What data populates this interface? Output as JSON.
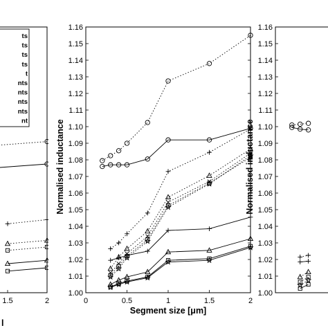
{
  "chart_data": [
    {
      "type": "line",
      "panel": "left",
      "x_ticks": [
        "1.5",
        "2"
      ],
      "legend_fragments": [
        "ts",
        "ts",
        "ts",
        "ts",
        "t",
        "nts",
        "nts",
        "nts",
        "nts",
        "nt"
      ],
      "series": [
        {
          "marker": "circle",
          "style": "dotted",
          "x": [
            1.0,
            2.0
          ],
          "y": [
            1.0875,
            1.091
          ]
        },
        {
          "marker": "circle",
          "style": "solid",
          "x": [
            1.0,
            2.0
          ],
          "y": [
            1.074,
            1.0775
          ]
        },
        {
          "marker": "plus",
          "style": "dotted",
          "x": [
            1.5,
            2.0
          ],
          "y": [
            1.0415,
            1.044
          ]
        },
        {
          "marker": "triangle",
          "style": "dotted",
          "x": [
            1.5,
            2.0
          ],
          "y": [
            1.0295,
            1.0315
          ]
        },
        {
          "marker": "square",
          "style": "dotted",
          "x": [
            1.5,
            2.0
          ],
          "y": [
            1.0255,
            1.0275
          ]
        },
        {
          "marker": "triangle",
          "style": "solid",
          "x": [
            1.5,
            2.0
          ],
          "y": [
            1.0175,
            1.0195
          ]
        },
        {
          "marker": "square",
          "style": "solid",
          "x": [
            1.5,
            2.0
          ],
          "y": [
            1.013,
            1.015
          ]
        }
      ]
    },
    {
      "type": "line",
      "panel": "middle",
      "xlabel": "Segment size [μm]",
      "ylabel": "Normalised inductance",
      "xlim": [
        0,
        2
      ],
      "ylim": [
        1.0,
        1.16
      ],
      "x_ticks": [
        "0",
        "0.5",
        "1",
        "1.5",
        "2"
      ],
      "y_ticks": [
        "1.00",
        "1.01",
        "1.02",
        "1.03",
        "1.04",
        "1.05",
        "1.06",
        "1.07",
        "1.08",
        "1.09",
        "1.10",
        "1.11",
        "1.12",
        "1.13",
        "1.14",
        "1.15",
        "1.16"
      ],
      "series": [
        {
          "marker": "circle",
          "style": "dotted",
          "x": [
            0.2,
            0.3,
            0.4,
            0.5,
            0.75,
            1.0,
            1.5,
            2.0
          ],
          "y": [
            1.0795,
            1.0825,
            1.0855,
            1.09,
            1.1025,
            1.1275,
            1.138,
            1.155
          ]
        },
        {
          "marker": "circle",
          "style": "solid",
          "x": [
            0.2,
            0.3,
            0.4,
            0.5,
            0.75,
            1.0,
            1.5,
            2.0
          ],
          "y": [
            1.076,
            1.077,
            1.077,
            1.077,
            1.0805,
            1.092,
            1.092,
            1.099
          ]
        },
        {
          "marker": "plus",
          "style": "dotted",
          "x": [
            0.3,
            0.4,
            0.5,
            0.75,
            1.0,
            1.5,
            2.0
          ],
          "y": [
            1.0265,
            1.03,
            1.0355,
            1.048,
            1.073,
            1.0845,
            1.0985
          ]
        },
        {
          "marker": "triangle",
          "style": "dotted",
          "x": [
            0.3,
            0.4,
            0.5,
            0.75,
            1.0,
            1.5,
            2.0
          ],
          "y": [
            1.0145,
            1.0215,
            1.0265,
            1.037,
            1.0575,
            1.0705,
            1.0865
          ]
        },
        {
          "marker": "cross",
          "style": "dotted",
          "x": [
            0.3,
            0.4,
            0.5,
            0.75,
            1.0,
            1.5,
            2.0
          ],
          "y": [
            1.012,
            1.0175,
            1.0235,
            1.034,
            1.0545,
            1.067,
            1.084
          ]
        },
        {
          "marker": "square",
          "style": "dotted",
          "x": [
            0.3,
            0.4,
            0.5,
            0.75,
            1.0,
            1.5,
            2.0
          ],
          "y": [
            1.0105,
            1.016,
            1.022,
            1.032,
            1.0525,
            1.066,
            1.0815
          ]
        },
        {
          "marker": "star",
          "style": "dotted",
          "x": [
            0.3,
            0.4,
            0.5,
            0.75,
            1.0,
            1.5,
            2.0
          ],
          "y": [
            1.0095,
            1.0145,
            1.021,
            1.031,
            1.0515,
            1.0655,
            1.0825
          ]
        },
        {
          "marker": "plus",
          "style": "solid",
          "x": [
            0.3,
            0.4,
            0.5,
            0.75,
            1.0,
            1.5,
            2.0
          ],
          "y": [
            1.0195,
            1.021,
            1.0225,
            1.025,
            1.0375,
            1.0385,
            1.0455
          ]
        },
        {
          "marker": "triangle",
          "style": "solid",
          "x": [
            0.3,
            0.4,
            0.5,
            0.75,
            1.0,
            1.5,
            2.0
          ],
          "y": [
            1.005,
            1.0075,
            1.0095,
            1.0125,
            1.0245,
            1.0255,
            1.0325
          ]
        },
        {
          "marker": "square",
          "style": "solid",
          "x": [
            0.3,
            0.4,
            0.5,
            0.75,
            1.0,
            1.5,
            2.0
          ],
          "y": [
            1.0035,
            1.0055,
            1.007,
            1.0095,
            1.0195,
            1.0205,
            1.028
          ]
        },
        {
          "marker": "star",
          "style": "solid",
          "x": [
            0.3,
            0.4,
            0.5,
            0.75,
            1.0,
            1.5,
            2.0
          ],
          "y": [
            1.0032,
            1.005,
            1.0065,
            1.009,
            1.0185,
            1.0195,
            1.0272
          ]
        }
      ]
    },
    {
      "type": "line",
      "panel": "right",
      "ylabel": "Normalised inductance",
      "xlim": [
        0,
        2
      ],
      "ylim": [
        1.0,
        1.16
      ],
      "y_ticks": [
        "1.00",
        "1.01",
        "1.02",
        "1.03",
        "1.04",
        "1.05",
        "1.06",
        "1.07",
        "1.08",
        "1.09",
        "1.10",
        "1.11",
        "1.12",
        "1.13",
        "1.14",
        "1.15",
        "1.16"
      ],
      "series": [
        {
          "marker": "circle",
          "style": "dotted",
          "x": [
            0.2,
            0.3,
            0.4
          ],
          "y": [
            1.101,
            1.1015,
            1.102
          ]
        },
        {
          "marker": "circle",
          "style": "solid",
          "x": [
            0.2,
            0.3,
            0.4
          ],
          "y": [
            1.0995,
            1.0985,
            1.098
          ]
        },
        {
          "marker": "plus",
          "style": "dotted",
          "x": [
            0.3,
            0.4
          ],
          "y": [
            1.0215,
            1.0225
          ]
        },
        {
          "marker": "plus",
          "style": "solid",
          "x": [
            0.3,
            0.4
          ],
          "y": [
            1.0185,
            1.019
          ]
        },
        {
          "marker": "triangle",
          "style": "dotted",
          "x": [
            0.3,
            0.4
          ],
          "y": [
            1.0095,
            1.0125
          ]
        },
        {
          "marker": "square",
          "style": "dotted",
          "x": [
            0.3,
            0.4
          ],
          "y": [
            1.0065,
            1.0095
          ]
        },
        {
          "marker": "star",
          "style": "dotted",
          "x": [
            0.3,
            0.4
          ],
          "y": [
            1.0045,
            1.0075
          ]
        },
        {
          "marker": "square",
          "style": "solid",
          "x": [
            0.3,
            0.4
          ],
          "y": [
            1.0025,
            1.005
          ]
        }
      ]
    }
  ],
  "left_bottom_label": "l"
}
